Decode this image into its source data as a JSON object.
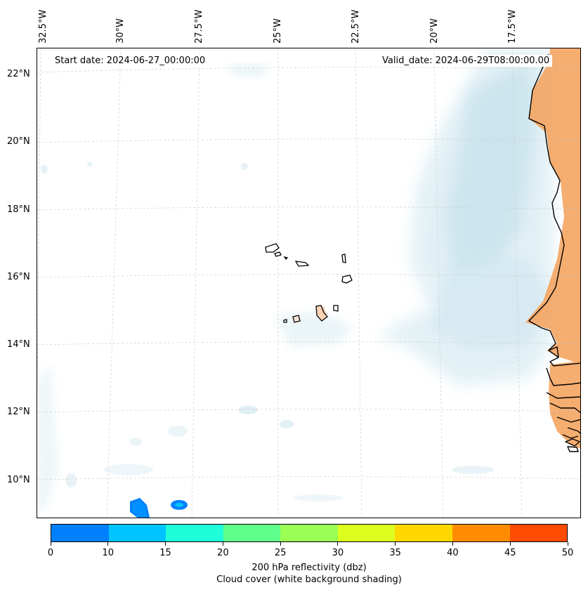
{
  "map": {
    "start_date_text": "Start date: 2024-06-27_00:00:00",
    "valid_date_text": "Valid_date: 2024-06-29T08:00:00.00",
    "lon_labels": [
      "32.5°W",
      "30°W",
      "27.5°W",
      "25°W",
      "22.5°W",
      "20°W",
      "17.5°W"
    ],
    "lat_labels": [
      "22°N",
      "20°N",
      "18°N",
      "16°N",
      "14°N",
      "12°N",
      "10°N"
    ],
    "land_color": "#f4a460",
    "cloud_color": "#d7ebf2",
    "coastline_color": "#000000",
    "gridline_color": "#cccccc"
  },
  "colorbar": {
    "ticks": [
      "0",
      "10",
      "15",
      "20",
      "25",
      "30",
      "35",
      "40",
      "45",
      "50"
    ],
    "colors": [
      "#0080ff",
      "#00c4ff",
      "#1ffed8",
      "#5eff8a",
      "#9afe55",
      "#dcfe1e",
      "#ffd700",
      "#ff8c00",
      "#ff4c00"
    ],
    "label_line1": "200 hPa reflectivity (dbz)",
    "label_line2": "Cloud cover (white background shading)"
  }
}
